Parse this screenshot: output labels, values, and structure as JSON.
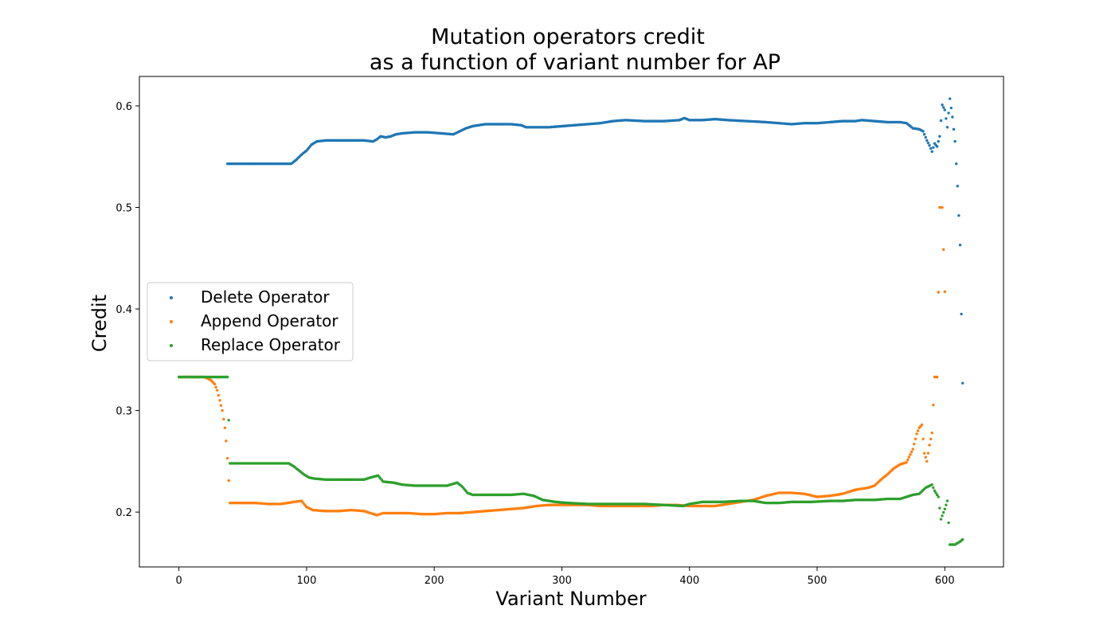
{
  "chart_data": {
    "type": "scatter",
    "title_lines": [
      "Mutation operators credit",
      "as a function of variant number for AP"
    ],
    "xlabel": "Variant Number",
    "ylabel": "Credit",
    "xlim": [
      -31,
      646
    ],
    "ylim": [
      0.146,
      0.629
    ],
    "xticks": [
      0,
      100,
      200,
      300,
      400,
      500,
      600
    ],
    "yticks": [
      0.2,
      0.3,
      0.4,
      0.5,
      0.6
    ],
    "grid": false,
    "legend_position": "center-left",
    "series": [
      {
        "name": "Delete Operator",
        "color": "#1f77b4",
        "points": [
          [
            38,
            0.543
          ],
          [
            50,
            0.543
          ],
          [
            60,
            0.543
          ],
          [
            70,
            0.543
          ],
          [
            80,
            0.543
          ],
          [
            88,
            0.543
          ],
          [
            92,
            0.547
          ],
          [
            96,
            0.552
          ],
          [
            100,
            0.556
          ],
          [
            104,
            0.562
          ],
          [
            108,
            0.565
          ],
          [
            115,
            0.566
          ],
          [
            130,
            0.566
          ],
          [
            145,
            0.566
          ],
          [
            152,
            0.565
          ],
          [
            155,
            0.567
          ],
          [
            158,
            0.57
          ],
          [
            162,
            0.569
          ],
          [
            166,
            0.57
          ],
          [
            170,
            0.572
          ],
          [
            175,
            0.573
          ],
          [
            185,
            0.574
          ],
          [
            195,
            0.574
          ],
          [
            205,
            0.573
          ],
          [
            215,
            0.572
          ],
          [
            220,
            0.575
          ],
          [
            225,
            0.578
          ],
          [
            230,
            0.58
          ],
          [
            240,
            0.582
          ],
          [
            250,
            0.582
          ],
          [
            260,
            0.582
          ],
          [
            268,
            0.581
          ],
          [
            272,
            0.579
          ],
          [
            280,
            0.579
          ],
          [
            290,
            0.579
          ],
          [
            300,
            0.58
          ],
          [
            310,
            0.581
          ],
          [
            320,
            0.582
          ],
          [
            330,
            0.583
          ],
          [
            340,
            0.585
          ],
          [
            350,
            0.586
          ],
          [
            365,
            0.585
          ],
          [
            380,
            0.585
          ],
          [
            392,
            0.586
          ],
          [
            396,
            0.588
          ],
          [
            400,
            0.586
          ],
          [
            410,
            0.586
          ],
          [
            420,
            0.587
          ],
          [
            430,
            0.586
          ],
          [
            445,
            0.585
          ],
          [
            460,
            0.584
          ],
          [
            470,
            0.583
          ],
          [
            480,
            0.582
          ],
          [
            490,
            0.583
          ],
          [
            500,
            0.583
          ],
          [
            510,
            0.584
          ],
          [
            520,
            0.585
          ],
          [
            530,
            0.585
          ],
          [
            535,
            0.586
          ],
          [
            545,
            0.585
          ],
          [
            555,
            0.584
          ],
          [
            565,
            0.584
          ],
          [
            570,
            0.583
          ],
          [
            575,
            0.578
          ],
          [
            580,
            0.577
          ],
          [
            583,
            0.575
          ],
          [
            586,
            0.566
          ],
          [
            588,
            0.561
          ],
          [
            590,
            0.555
          ],
          [
            592,
            0.563
          ],
          [
            594,
            0.56
          ],
          [
            596,
            0.57
          ],
          [
            598,
            0.601
          ],
          [
            600,
            0.596
          ],
          [
            602,
            0.579
          ],
          [
            604,
            0.607
          ],
          [
            606,
            0.589
          ],
          [
            608,
            0.565
          ],
          [
            610,
            0.521
          ],
          [
            612,
            0.463
          ],
          [
            614,
            0.327
          ]
        ]
      },
      {
        "name": "Append Operator",
        "color": "#ff7f0e",
        "points": [
          [
            0,
            0.333
          ],
          [
            10,
            0.333
          ],
          [
            20,
            0.333
          ],
          [
            25,
            0.33
          ],
          [
            28,
            0.326
          ],
          [
            30,
            0.32
          ],
          [
            32,
            0.31
          ],
          [
            34,
            0.3
          ],
          [
            36,
            0.283
          ],
          [
            37,
            0.27
          ],
          [
            38,
            0.253
          ],
          [
            39,
            0.231
          ],
          [
            40,
            0.209
          ],
          [
            50,
            0.209
          ],
          [
            60,
            0.209
          ],
          [
            70,
            0.208
          ],
          [
            80,
            0.208
          ],
          [
            90,
            0.21
          ],
          [
            96,
            0.211
          ],
          [
            100,
            0.205
          ],
          [
            105,
            0.202
          ],
          [
            115,
            0.201
          ],
          [
            125,
            0.201
          ],
          [
            135,
            0.202
          ],
          [
            145,
            0.201
          ],
          [
            150,
            0.199
          ],
          [
            155,
            0.197
          ],
          [
            160,
            0.199
          ],
          [
            170,
            0.199
          ],
          [
            180,
            0.199
          ],
          [
            190,
            0.198
          ],
          [
            200,
            0.198
          ],
          [
            210,
            0.199
          ],
          [
            220,
            0.199
          ],
          [
            230,
            0.2
          ],
          [
            240,
            0.201
          ],
          [
            250,
            0.202
          ],
          [
            260,
            0.203
          ],
          [
            270,
            0.204
          ],
          [
            280,
            0.206
          ],
          [
            290,
            0.207
          ],
          [
            300,
            0.207
          ],
          [
            310,
            0.207
          ],
          [
            320,
            0.207
          ],
          [
            330,
            0.206
          ],
          [
            340,
            0.206
          ],
          [
            350,
            0.206
          ],
          [
            360,
            0.206
          ],
          [
            370,
            0.206
          ],
          [
            380,
            0.207
          ],
          [
            390,
            0.207
          ],
          [
            400,
            0.206
          ],
          [
            410,
            0.206
          ],
          [
            420,
            0.206
          ],
          [
            430,
            0.208
          ],
          [
            440,
            0.21
          ],
          [
            450,
            0.212
          ],
          [
            460,
            0.216
          ],
          [
            470,
            0.219
          ],
          [
            480,
            0.219
          ],
          [
            490,
            0.218
          ],
          [
            500,
            0.215
          ],
          [
            510,
            0.216
          ],
          [
            520,
            0.218
          ],
          [
            530,
            0.222
          ],
          [
            540,
            0.224
          ],
          [
            545,
            0.226
          ],
          [
            550,
            0.232
          ],
          [
            555,
            0.237
          ],
          [
            560,
            0.243
          ],
          [
            565,
            0.247
          ],
          [
            570,
            0.249
          ],
          [
            575,
            0.262
          ],
          [
            578,
            0.277
          ],
          [
            580,
            0.283
          ],
          [
            582,
            0.286
          ],
          [
            584,
            0.258
          ],
          [
            586,
            0.25
          ],
          [
            588,
            0.266
          ],
          [
            590,
            0.278
          ],
          [
            592,
            0.333
          ],
          [
            594,
            0.333
          ],
          [
            596,
            0.5
          ],
          [
            598,
            0.5
          ],
          [
            600,
            0.417
          ]
        ]
      },
      {
        "name": "Replace Operator",
        "color": "#2ca02c",
        "points": [
          [
            0,
            0.333
          ],
          [
            10,
            0.333
          ],
          [
            20,
            0.333
          ],
          [
            30,
            0.333
          ],
          [
            38,
            0.333
          ],
          [
            40,
            0.248
          ],
          [
            50,
            0.248
          ],
          [
            60,
            0.248
          ],
          [
            70,
            0.248
          ],
          [
            80,
            0.248
          ],
          [
            86,
            0.248
          ],
          [
            90,
            0.245
          ],
          [
            94,
            0.241
          ],
          [
            98,
            0.237
          ],
          [
            102,
            0.234
          ],
          [
            106,
            0.233
          ],
          [
            115,
            0.232
          ],
          [
            130,
            0.232
          ],
          [
            145,
            0.232
          ],
          [
            150,
            0.234
          ],
          [
            156,
            0.236
          ],
          [
            160,
            0.23
          ],
          [
            168,
            0.229
          ],
          [
            175,
            0.227
          ],
          [
            185,
            0.226
          ],
          [
            200,
            0.226
          ],
          [
            210,
            0.226
          ],
          [
            218,
            0.229
          ],
          [
            222,
            0.225
          ],
          [
            226,
            0.219
          ],
          [
            230,
            0.217
          ],
          [
            245,
            0.217
          ],
          [
            260,
            0.217
          ],
          [
            270,
            0.218
          ],
          [
            278,
            0.216
          ],
          [
            285,
            0.212
          ],
          [
            295,
            0.21
          ],
          [
            305,
            0.209
          ],
          [
            320,
            0.208
          ],
          [
            335,
            0.208
          ],
          [
            350,
            0.208
          ],
          [
            365,
            0.208
          ],
          [
            380,
            0.207
          ],
          [
            395,
            0.206
          ],
          [
            400,
            0.208
          ],
          [
            410,
            0.21
          ],
          [
            425,
            0.21
          ],
          [
            440,
            0.211
          ],
          [
            450,
            0.211
          ],
          [
            460,
            0.209
          ],
          [
            470,
            0.209
          ],
          [
            480,
            0.21
          ],
          [
            495,
            0.21
          ],
          [
            510,
            0.211
          ],
          [
            520,
            0.211
          ],
          [
            530,
            0.212
          ],
          [
            545,
            0.212
          ],
          [
            555,
            0.213
          ],
          [
            565,
            0.213
          ],
          [
            575,
            0.217
          ],
          [
            580,
            0.218
          ],
          [
            585,
            0.224
          ],
          [
            590,
            0.227
          ],
          [
            592,
            0.221
          ],
          [
            595,
            0.215
          ],
          [
            597,
            0.193
          ],
          [
            600,
            0.203
          ],
          [
            602,
            0.211
          ],
          [
            604,
            0.168
          ],
          [
            608,
            0.168
          ],
          [
            612,
            0.171
          ],
          [
            614,
            0.173
          ]
        ]
      }
    ]
  }
}
